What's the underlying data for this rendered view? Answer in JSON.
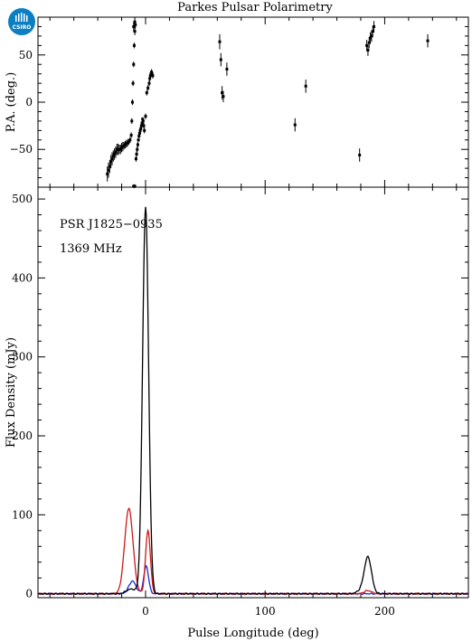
{
  "logo": {
    "text": "CSIRO",
    "color": "#0b7fc1"
  },
  "chart_data": [
    {
      "type": "scatter",
      "panel": "top",
      "title": "Parkes Pulsar Polarimetry",
      "ylabel": "P.A. (deg.)",
      "xlim": [
        -90,
        270
      ],
      "ylim": [
        -90,
        90
      ],
      "yticks": [
        -50,
        0,
        50
      ],
      "errorbars": true,
      "series": [
        {
          "color": "#000000",
          "x": [
            -32,
            -31,
            -30,
            -29,
            -28,
            -27,
            -26,
            -25,
            -24,
            -23,
            -22,
            -21,
            -20,
            -19,
            -18,
            -17,
            -16,
            -15,
            -14,
            -13,
            -12,
            -11.5,
            -11,
            -10.5,
            -10,
            -9.5,
            -9,
            -8.5,
            -8,
            -7.5,
            -7,
            -6.5,
            -6,
            -5.5,
            -5,
            -4.5,
            -4,
            -3.5,
            -3,
            -2.5,
            -2,
            -1.5,
            -1,
            0,
            1,
            2,
            3,
            3.5,
            4,
            4.5,
            5,
            5.5,
            6,
            -10,
            -9,
            62,
            63,
            64,
            65,
            68,
            125,
            134,
            179,
            185,
            186,
            187,
            188,
            189,
            190,
            191,
            236
          ],
          "y": [
            -76,
            -72,
            -68,
            -63,
            -60,
            -57,
            -55,
            -53,
            -50,
            -50,
            -50,
            -50,
            -48,
            -47,
            -46,
            -45,
            -44,
            -43,
            -42,
            -40,
            -35,
            -20,
            0,
            20,
            40,
            60,
            75,
            82,
            -60,
            -55,
            -50,
            -45,
            -40,
            -36,
            -33,
            -30,
            -28,
            -25,
            -22,
            -18,
            -20,
            -25,
            -30,
            -15,
            10,
            15,
            20,
            25,
            28,
            30,
            32,
            30,
            28,
            80,
            85,
            64,
            45,
            10,
            6,
            35,
            -24,
            17,
            -56,
            60,
            55,
            63,
            68,
            70,
            75,
            80,
            65
          ],
          "err": [
            8,
            8,
            7,
            7,
            7,
            6,
            6,
            6,
            6,
            6,
            5,
            5,
            5,
            5,
            4,
            4,
            4,
            4,
            3,
            3,
            3,
            3,
            3,
            3,
            3,
            3,
            4,
            4,
            3,
            3,
            3,
            3,
            2,
            2,
            2,
            2,
            2,
            2,
            2,
            2,
            3,
            3,
            3,
            3,
            3,
            3,
            3,
            3,
            3,
            3,
            3,
            3,
            3,
            5,
            5,
            8,
            7,
            7,
            6,
            7,
            7,
            7,
            7,
            6,
            6,
            6,
            6,
            6,
            6,
            6,
            7
          ]
        },
        {
          "color": "#000000",
          "x": [
            -10,
            -9
          ],
          "y": [
            -89,
            -89
          ],
          "err": [
            2,
            2
          ]
        }
      ]
    },
    {
      "type": "line",
      "panel": "bottom",
      "xlabel": "Pulse Longitude (deg)",
      "ylabel": "Flux Density (mJy)",
      "xlim": [
        -90,
        270
      ],
      "ylim": [
        -5,
        515
      ],
      "xticks": [
        0,
        100,
        200
      ],
      "yticks": [
        0,
        100,
        200,
        300,
        400,
        500
      ],
      "annotations": [
        "PSR J1825−0935",
        "1369 MHz"
      ],
      "series": [
        {
          "color": "#000000",
          "components": [
            {
              "center": 0,
              "width": 2.5,
              "amp": 490
            },
            {
              "center": -12,
              "width": 4,
              "amp": 6
            },
            {
              "center": 186,
              "width": 3,
              "amp": 45
            },
            {
              "center": 181,
              "width": 4,
              "amp": 4
            }
          ]
        },
        {
          "color": "#d01818",
          "components": [
            {
              "center": -14,
              "width": 3.5,
              "amp": 108
            },
            {
              "center": 2,
              "width": 2,
              "amp": 80
            },
            {
              "center": 186,
              "width": 3,
              "amp": 4
            }
          ]
        },
        {
          "color": "#1a2ad8",
          "components": [
            {
              "center": -11,
              "width": 3,
              "amp": 16
            },
            {
              "center": 0.5,
              "width": 2,
              "amp": 35
            }
          ]
        }
      ]
    }
  ]
}
